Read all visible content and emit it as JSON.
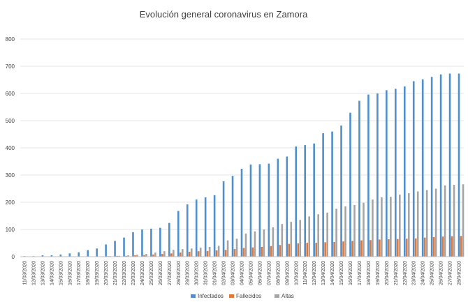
{
  "chart_data": {
    "type": "bar",
    "title": "Evolución general coronavirus en Zamora",
    "xlabel": "",
    "ylabel": "",
    "ylim": [
      0,
      800
    ],
    "yticks": [
      0,
      100,
      200,
      300,
      400,
      500,
      600,
      700,
      800
    ],
    "grid": true,
    "legend_position": "bottom",
    "categories": [
      "11/03/2020",
      "12/03/2020",
      "13/03/2020",
      "14/03/2020",
      "15/03/2020",
      "16/03/2020",
      "17/03/2020",
      "18/03/2020",
      "19/03/2020",
      "20/03/2020",
      "21/03/2020",
      "22/03/2020",
      "23/03/2020",
      "24/03/2020",
      "25/03/2020",
      "26/03/2020",
      "27/03/2020",
      "28/03/2020",
      "29/03/2020",
      "30/03/2020",
      "31/03/2020",
      "01/04/2020",
      "02/04/2020",
      "03/04/2020",
      "04/04/2020",
      "05/04/2020",
      "06/04/2020",
      "07/04/2020",
      "08/04/2020",
      "09/04/2020",
      "10/04/2020",
      "11/04/2020",
      "12/04/2020",
      "13/04/2020",
      "14/04/2020",
      "15/04/2020",
      "16/04/2020",
      "17/04/2020",
      "18/04/2020",
      "19/04/2020",
      "20/04/2020",
      "21/04/2020",
      "22/04/2020",
      "23/04/2020",
      "24/04/2020",
      "25/04/2020",
      "26/04/2020",
      "27/04/2020",
      "28/04/2020"
    ],
    "series": [
      {
        "name": "Infectados",
        "color": "#4f8fcb",
        "values": [
          2,
          2,
          5,
          5,
          8,
          12,
          16,
          24,
          30,
          45,
          58,
          70,
          90,
          100,
          103,
          106,
          124,
          168,
          192,
          210,
          218,
          226,
          277,
          297,
          323,
          339,
          340,
          342,
          360,
          368,
          405,
          410,
          416,
          454,
          460,
          482,
          529,
          573,
          596,
          600,
          612,
          617,
          626,
          645,
          652,
          661,
          670,
          673,
          673
        ]
      },
      {
        "name": "Fallecidos",
        "color": "#e0783a",
        "values": [
          0,
          0,
          0,
          0,
          0,
          0,
          0,
          0,
          1,
          2,
          3,
          3,
          5,
          6,
          8,
          10,
          12,
          15,
          18,
          20,
          21,
          23,
          25,
          28,
          32,
          34,
          36,
          39,
          43,
          47,
          49,
          51,
          51,
          53,
          54,
          56,
          58,
          60,
          61,
          63,
          64,
          65,
          66,
          67,
          70,
          72,
          74,
          75,
          76
        ]
      },
      {
        "name": "Altas",
        "color": "#a5a5a5",
        "values": [
          0,
          0,
          0,
          0,
          0,
          0,
          0,
          0,
          1,
          2,
          3,
          5,
          7,
          10,
          15,
          20,
          25,
          28,
          30,
          33,
          36,
          40,
          60,
          66,
          85,
          93,
          100,
          108,
          120,
          128,
          135,
          148,
          156,
          162,
          176,
          185,
          190,
          198,
          210,
          218,
          220,
          228,
          233,
          240,
          245,
          250,
          262,
          264,
          266
        ]
      }
    ]
  }
}
